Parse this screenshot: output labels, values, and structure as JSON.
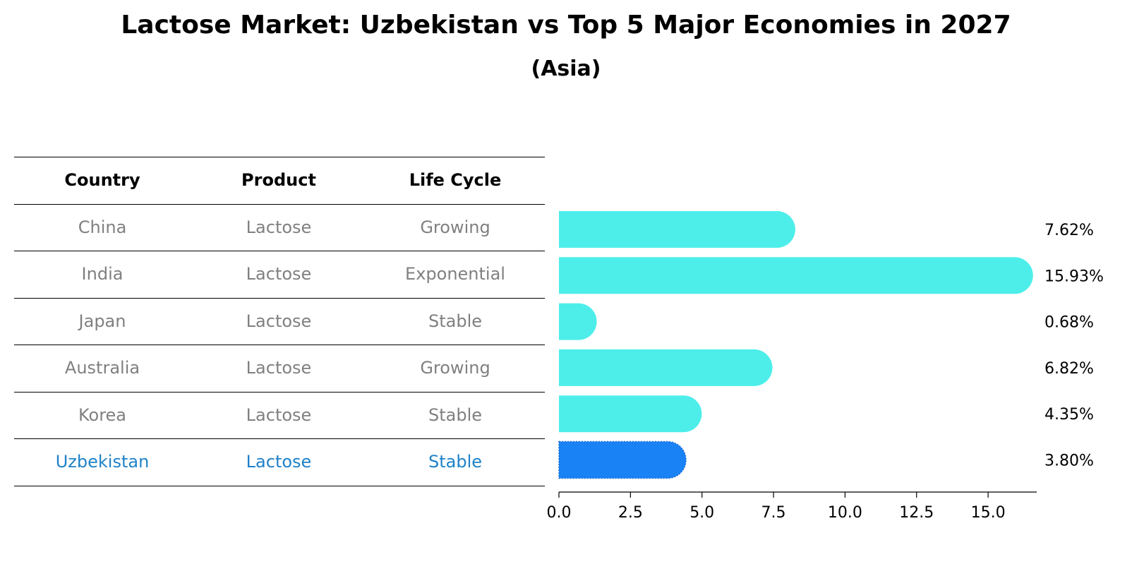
{
  "title": "Lactose Market: Uzbekistan vs Top 5 Major Economies in 2027",
  "subtitle": "(Asia)",
  "table": {
    "headers": [
      "Country",
      "Product",
      "Life Cycle"
    ],
    "rows": [
      {
        "country": "China",
        "product": "Lactose",
        "life_cycle": "Growing"
      },
      {
        "country": "India",
        "product": "Lactose",
        "life_cycle": "Exponential"
      },
      {
        "country": "Japan",
        "product": "Lactose",
        "life_cycle": "Stable"
      },
      {
        "country": "Australia",
        "product": "Lactose",
        "life_cycle": "Growing"
      },
      {
        "country": "Korea",
        "product": "Lactose",
        "life_cycle": "Stable"
      },
      {
        "country": "Uzbekistan",
        "product": "Lactose",
        "life_cycle": "Stable"
      }
    ]
  },
  "colors": {
    "bar": "#4deeea",
    "highlight": "#1982f5",
    "highlight_text": "#1f82c8",
    "muted_text": "#808080"
  },
  "chart_data": {
    "type": "bar",
    "orientation": "horizontal",
    "categories": [
      "China",
      "India",
      "Japan",
      "Australia",
      "Korea",
      "Uzbekistan"
    ],
    "values": [
      7.62,
      15.93,
      0.68,
      6.82,
      4.35,
      3.8
    ],
    "value_labels": [
      "7.62%",
      "15.93%",
      "0.68%",
      "6.82%",
      "4.35%",
      "3.80%"
    ],
    "highlight": "Uzbekistan",
    "xlim": [
      0,
      16.7
    ],
    "xticks": [
      0.0,
      2.5,
      5.0,
      7.5,
      10.0,
      12.5,
      15.0
    ],
    "xtick_labels": [
      "0.0",
      "2.5",
      "5.0",
      "7.5",
      "10.0",
      "12.5",
      "15.0"
    ],
    "grid": false
  }
}
